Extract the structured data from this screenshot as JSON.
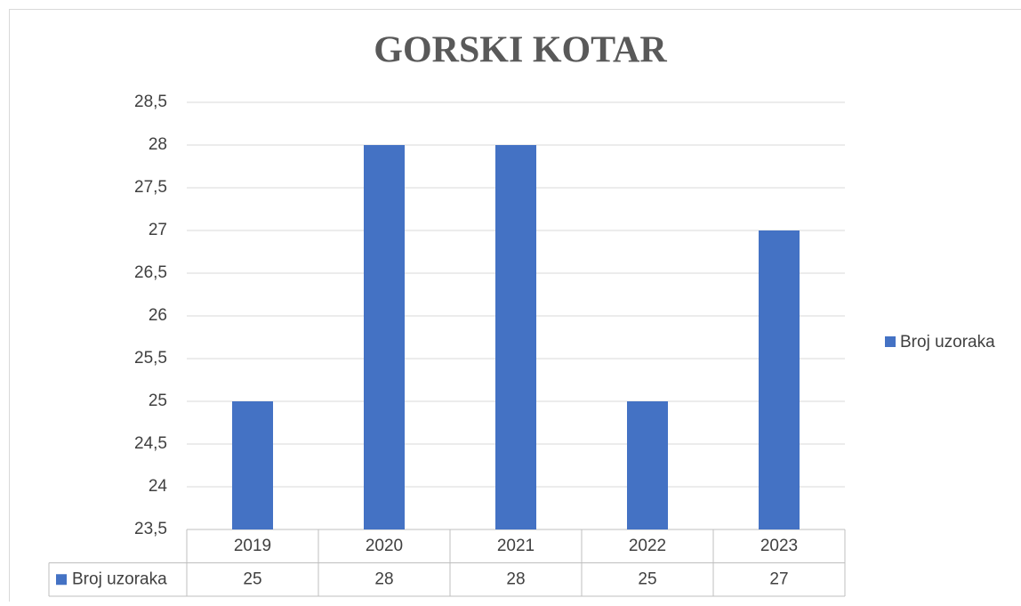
{
  "chart_data": {
    "type": "bar",
    "title": "GORSKI KOTAR",
    "categories": [
      "2019",
      "2020",
      "2021",
      "2022",
      "2023"
    ],
    "series": [
      {
        "name": "Broj uzoraka",
        "color": "#4472c4",
        "values": [
          25,
          28,
          28,
          25,
          27
        ]
      }
    ],
    "ylim": [
      23.5,
      28.5
    ],
    "yticks": [
      {
        "value": 23.5,
        "label": "23,5"
      },
      24,
      {
        "value": 24.5,
        "label": "24,5"
      },
      25,
      {
        "value": 25.5,
        "label": "25,5"
      },
      26,
      {
        "value": 26.5,
        "label": "26,5"
      },
      27,
      {
        "value": 27.5,
        "label": "27,5"
      },
      28,
      {
        "value": 28.5,
        "label": "28,5"
      }
    ],
    "grid": true,
    "legend": "right",
    "data_table": true
  }
}
